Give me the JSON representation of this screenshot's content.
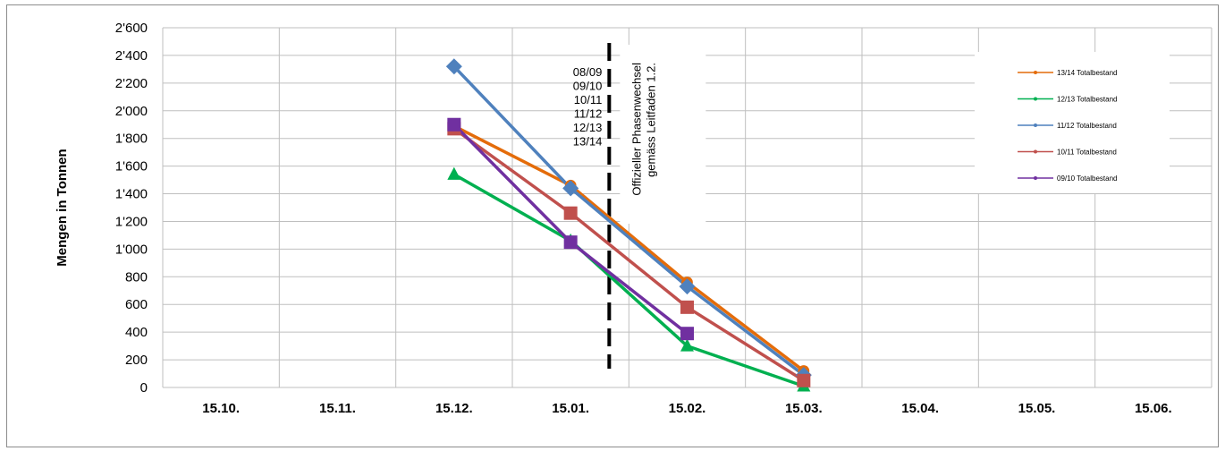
{
  "chart_data": {
    "type": "line",
    "ylabel": "Mengen in Tonnen",
    "xlabel": "",
    "categories": [
      "15.10.",
      "15.11.",
      "15.12.",
      "15.01.",
      "15.02.",
      "15.03.",
      "15.04.",
      "15.05.",
      "15.06."
    ],
    "yticks": [
      "0",
      "200",
      "400",
      "600",
      "800",
      "1'000",
      "1'200",
      "1'400",
      "1'600",
      "1'800",
      "2'000",
      "2'200",
      "2'400",
      "2'600"
    ],
    "ylim": [
      0,
      2600
    ],
    "grid": true,
    "legend_position": "top-right",
    "series": [
      {
        "name": "13/14 Totalbestand",
        "color": "#E46C0A",
        "marker": "circle",
        "values": [
          null,
          null,
          1890,
          1460,
          760,
          120,
          null,
          null,
          null
        ]
      },
      {
        "name": "12/13 Totalbestand",
        "color": "#00B050",
        "marker": "triangle",
        "values": [
          null,
          null,
          1540,
          1060,
          300,
          10,
          null,
          null,
          null
        ]
      },
      {
        "name": "11/12 Totalbestand",
        "color": "#4F81BD",
        "marker": "diamond",
        "values": [
          null,
          null,
          2320,
          1440,
          730,
          90,
          null,
          null,
          null
        ]
      },
      {
        "name": "10/11 Totalbestand",
        "color": "#C0504D",
        "marker": "square",
        "values": [
          null,
          null,
          1870,
          1260,
          580,
          50,
          null,
          null,
          null
        ]
      },
      {
        "name": "09/10 Totalbestand",
        "color": "#7030A0",
        "marker": "square",
        "values": [
          null,
          null,
          1900,
          1050,
          390,
          null,
          null,
          null,
          null
        ]
      }
    ],
    "phase_line": {
      "seasons": [
        "08/09",
        "09/10",
        "10/11",
        "11/12",
        "12/13",
        "13/14"
      ],
      "annotation": [
        "Offizieller Phasenwechsel",
        "gemäss Leitfaden 1.2."
      ]
    }
  }
}
